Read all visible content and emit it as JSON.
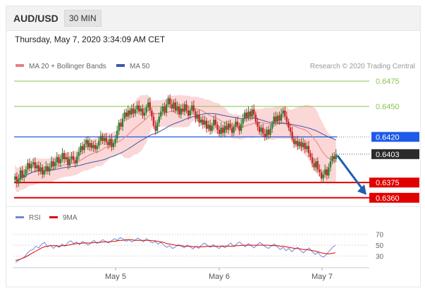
{
  "header": {
    "symbol": "AUD/USD",
    "timeframe": "30 MIN",
    "datetime": "Thursday, May 7, 2020 3:34:09 AM CET"
  },
  "legend": {
    "ma20_label": "MA 20 + Bollinger Bands",
    "ma50_label": "MA 50",
    "copyright": "Research © 2020 Trading Central",
    "rsi_label": "RSI",
    "ma9_label": "9MA"
  },
  "colors": {
    "up_candle": "#2e7d32",
    "down_candle": "#c62828",
    "bollinger_fill": "#f9c9c9",
    "ma20": "#e88080",
    "ma50": "#3b5aa8",
    "blue_level": "#1e5ae8",
    "red_level": "#e00000",
    "green_level": "#8bc34a",
    "arrow": "#1f5fb0",
    "rsi": "#6b8ad8",
    "ma9": "#e00000"
  },
  "chart_data": [
    {
      "type": "candlestick",
      "title": "AUD/USD 30 MIN",
      "ylim": [
        0.6355,
        0.6482
      ],
      "x_ticks": [
        "May 5",
        "May 6",
        "May 7"
      ],
      "levels": [
        {
          "value": 0.6475,
          "label": "0.6475",
          "style": "green"
        },
        {
          "value": 0.645,
          "label": "0.6450",
          "style": "green"
        },
        {
          "value": 0.642,
          "label": "0.6420",
          "style": "blue"
        },
        {
          "value": 0.6403,
          "label": "0.6403",
          "style": "current"
        },
        {
          "value": 0.6375,
          "label": "0.6375",
          "style": "red"
        },
        {
          "value": 0.636,
          "label": "0.6360",
          "style": "red"
        }
      ],
      "close": [
        0.6381,
        0.6374,
        0.6378,
        0.6387,
        0.638,
        0.6383,
        0.6388,
        0.6394,
        0.6389,
        0.6393,
        0.6395,
        0.6389,
        0.6392,
        0.6386,
        0.639,
        0.6383,
        0.6387,
        0.6391,
        0.6386,
        0.639,
        0.6396,
        0.6391,
        0.6395,
        0.64,
        0.6394,
        0.6398,
        0.6404,
        0.6398,
        0.64,
        0.6392,
        0.6398,
        0.6401,
        0.6397,
        0.6394,
        0.6401,
        0.6405,
        0.6411,
        0.6407,
        0.6413,
        0.6417,
        0.641,
        0.6414,
        0.6409,
        0.6412,
        0.6408,
        0.6411,
        0.6416,
        0.6421,
        0.6416,
        0.6419,
        0.6415,
        0.6412,
        0.6418,
        0.641,
        0.6414,
        0.6418,
        0.6426,
        0.6434,
        0.643,
        0.6438,
        0.6444,
        0.644,
        0.6446,
        0.6442,
        0.6448,
        0.6443,
        0.6447,
        0.6451,
        0.6445,
        0.6448,
        0.6441,
        0.6444,
        0.6449,
        0.6454,
        0.6446,
        0.644,
        0.6431,
        0.6426,
        0.6434,
        0.644,
        0.6445,
        0.645,
        0.6444,
        0.6452,
        0.6458,
        0.6452,
        0.6448,
        0.6454,
        0.6446,
        0.645,
        0.6442,
        0.6448,
        0.6445,
        0.6452,
        0.6446,
        0.6441,
        0.6446,
        0.6451,
        0.6445,
        0.6438,
        0.6442,
        0.6434,
        0.6437,
        0.6432,
        0.6436,
        0.6428,
        0.6432,
        0.6426,
        0.6431,
        0.6437,
        0.6432,
        0.6427,
        0.6423,
        0.6429,
        0.6424,
        0.6431,
        0.6427,
        0.6433,
        0.6429,
        0.6424,
        0.643,
        0.6435,
        0.6431,
        0.6426,
        0.6433,
        0.6438,
        0.6444,
        0.6439,
        0.6445,
        0.644,
        0.6447,
        0.6442,
        0.6435,
        0.643,
        0.6425,
        0.6429,
        0.6423,
        0.642,
        0.6427,
        0.6422,
        0.6428,
        0.6433,
        0.644,
        0.6435,
        0.6441,
        0.6436,
        0.6443,
        0.6446,
        0.644,
        0.6435,
        0.6429,
        0.6425,
        0.6418,
        0.6413,
        0.6416,
        0.6411,
        0.6415,
        0.641,
        0.6414,
        0.6408,
        0.6411,
        0.6404,
        0.64,
        0.6394,
        0.639,
        0.6396,
        0.6388,
        0.6385,
        0.6379,
        0.6383,
        0.6388,
        0.6382,
        0.639,
        0.6396,
        0.6401,
        0.6398,
        0.6403
      ]
    },
    {
      "type": "line",
      "title": "RSI",
      "ylim": [
        15,
        80
      ],
      "y_ticks": [
        70,
        50,
        30
      ],
      "series": [
        {
          "name": "RSI",
          "values": [
            18,
            22,
            25,
            28,
            35,
            40,
            42,
            48,
            45,
            52,
            55,
            47,
            50,
            44,
            49,
            46,
            52,
            48,
            55,
            58,
            53,
            56,
            51,
            57,
            54,
            50,
            55,
            59,
            53,
            56,
            60,
            57,
            54,
            58,
            62,
            59,
            64,
            61,
            57,
            60,
            56,
            59,
            63,
            60,
            56,
            62,
            58,
            54,
            57,
            52,
            55,
            50,
            46,
            49,
            44,
            47,
            51,
            48,
            45,
            50,
            47,
            43,
            48,
            44,
            50,
            54,
            49,
            46,
            51,
            47,
            44,
            49,
            45,
            50,
            54,
            48,
            52,
            56,
            51,
            47,
            53,
            49,
            45,
            50,
            55,
            51,
            47,
            44,
            49,
            52,
            47,
            42,
            46,
            40,
            44,
            38,
            43,
            46,
            40,
            36,
            41,
            45,
            38,
            33,
            37,
            30,
            28,
            34,
            40,
            46,
            50
          ]
        },
        {
          "name": "9MA",
          "values": [
            22,
            23,
            25,
            27,
            30,
            33,
            36,
            39,
            42,
            45,
            47,
            48,
            49,
            49,
            49,
            48,
            49,
            49,
            50,
            51,
            52,
            53,
            53,
            54,
            54,
            54,
            54,
            55,
            55,
            55,
            56,
            56,
            56,
            57,
            57,
            58,
            59,
            59,
            60,
            60,
            60,
            59,
            59,
            59,
            59,
            59,
            59,
            58,
            58,
            57,
            56,
            55,
            53,
            52,
            51,
            50,
            49,
            49,
            48,
            48,
            48,
            47,
            47,
            47,
            47,
            47,
            48,
            48,
            48,
            48,
            48,
            48,
            48,
            48,
            48,
            48,
            49,
            49,
            50,
            50,
            50,
            50,
            50,
            50,
            50,
            50,
            50,
            50,
            49,
            49,
            49,
            48,
            48,
            47,
            46,
            45,
            44,
            44,
            43,
            42,
            42,
            41,
            40,
            39,
            38,
            36,
            35,
            34,
            34,
            35,
            36
          ]
        }
      ]
    }
  ]
}
